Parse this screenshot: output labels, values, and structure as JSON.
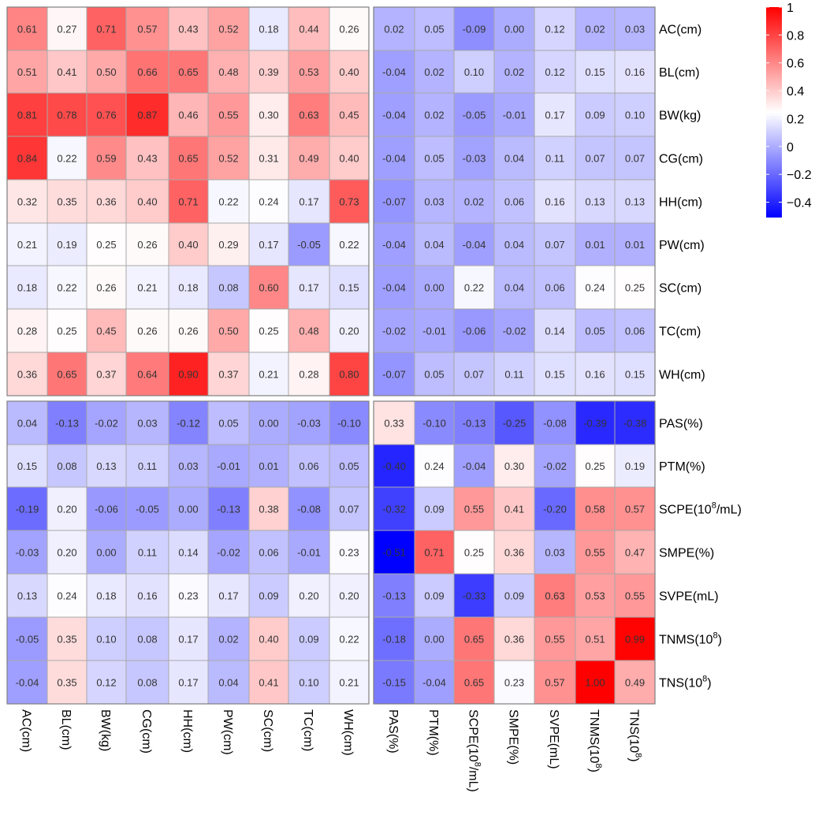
{
  "chart_data": {
    "type": "heatmap",
    "title": "",
    "xlabel": "",
    "ylabel": "",
    "rows": [
      "AC(cm)",
      "BL(cm)",
      "BW(kg)",
      "CG(cm)",
      "HH(cm)",
      "PW(cm)",
      "SC(cm)",
      "TC(cm)",
      "WH(cm)",
      "PAS(%)",
      "PTM(%)",
      "SCPE(10^8/mL)",
      "SMPE(%)",
      "SVPE(mL)",
      "TNMS(10^8)",
      "TNS(10^8)"
    ],
    "columns": [
      "AC(cm)",
      "BL(cm)",
      "BW(kg)",
      "CG(cm)",
      "HH(cm)",
      "PW(cm)",
      "SC(cm)",
      "TC(cm)",
      "WH(cm)",
      "PAS(%)",
      "PTM(%)",
      "SCPE(10^8/mL)",
      "SMPE(%)",
      "SVPE(mL)",
      "TNMS(10^8)",
      "TNS(10^8)"
    ],
    "values": [
      [
        0.61,
        0.27,
        0.71,
        0.57,
        0.43,
        0.52,
        0.18,
        0.44,
        0.26,
        0.02,
        0.05,
        -0.09,
        0.0,
        0.12,
        0.02,
        0.03
      ],
      [
        0.51,
        0.41,
        0.5,
        0.66,
        0.65,
        0.48,
        0.39,
        0.53,
        0.4,
        -0.04,
        0.02,
        0.1,
        0.02,
        0.12,
        0.15,
        0.16
      ],
      [
        0.81,
        0.78,
        0.76,
        0.87,
        0.46,
        0.55,
        0.3,
        0.63,
        0.45,
        -0.04,
        0.02,
        -0.05,
        -0.01,
        0.17,
        0.09,
        0.1
      ],
      [
        0.84,
        0.22,
        0.59,
        0.43,
        0.65,
        0.52,
        0.31,
        0.49,
        0.4,
        -0.04,
        0.05,
        -0.03,
        0.04,
        0.11,
        0.07,
        0.07
      ],
      [
        0.32,
        0.35,
        0.36,
        0.4,
        0.71,
        0.22,
        0.24,
        0.17,
        0.73,
        -0.07,
        0.03,
        0.02,
        0.06,
        0.16,
        0.13,
        0.13
      ],
      [
        0.21,
        0.19,
        0.25,
        0.26,
        0.4,
        0.29,
        0.17,
        -0.05,
        0.22,
        -0.04,
        0.04,
        -0.04,
        0.04,
        0.07,
        0.01,
        0.01
      ],
      [
        0.18,
        0.22,
        0.26,
        0.21,
        0.18,
        0.08,
        0.6,
        0.17,
        0.15,
        -0.04,
        0.0,
        0.22,
        0.04,
        0.06,
        0.24,
        0.25
      ],
      [
        0.28,
        0.25,
        0.45,
        0.26,
        0.26,
        0.5,
        0.25,
        0.48,
        0.2,
        -0.02,
        -0.01,
        -0.06,
        -0.02,
        0.14,
        0.05,
        0.06
      ],
      [
        0.36,
        0.65,
        0.37,
        0.64,
        0.9,
        0.37,
        0.21,
        0.28,
        0.8,
        -0.07,
        0.05,
        0.07,
        0.11,
        0.15,
        0.16,
        0.15
      ],
      [
        0.04,
        -0.13,
        -0.02,
        0.03,
        -0.12,
        0.05,
        0.0,
        -0.03,
        -0.1,
        0.33,
        -0.1,
        -0.13,
        -0.25,
        -0.08,
        -0.39,
        -0.38
      ],
      [
        0.15,
        0.08,
        0.13,
        0.11,
        0.03,
        -0.01,
        0.01,
        0.06,
        0.05,
        -0.4,
        0.24,
        -0.04,
        0.3,
        -0.02,
        0.25,
        0.19
      ],
      [
        -0.19,
        0.2,
        -0.06,
        -0.05,
        0.0,
        -0.13,
        0.38,
        -0.08,
        0.07,
        -0.32,
        0.09,
        0.55,
        0.41,
        -0.2,
        0.58,
        0.57
      ],
      [
        -0.03,
        0.2,
        0.0,
        0.11,
        0.14,
        -0.02,
        0.06,
        -0.01,
        0.23,
        -0.51,
        0.71,
        0.25,
        0.36,
        0.03,
        0.55,
        0.47
      ],
      [
        0.13,
        0.24,
        0.18,
        0.16,
        0.23,
        0.17,
        0.09,
        0.2,
        0.2,
        -0.13,
        0.09,
        -0.33,
        0.09,
        0.63,
        0.53,
        0.55
      ],
      [
        -0.05,
        0.35,
        0.1,
        0.08,
        0.17,
        0.02,
        0.4,
        0.09,
        0.22,
        -0.18,
        0.0,
        0.65,
        0.36,
        0.55,
        0.51,
        0.99
      ],
      [
        -0.04,
        0.35,
        0.12,
        0.08,
        0.17,
        0.04,
        0.41,
        0.1,
        0.21,
        -0.15,
        -0.04,
        0.65,
        0.23,
        0.57,
        1.0,
        0.49
      ]
    ],
    "value_labels": [
      [
        "0.61",
        "0.27",
        "0.71",
        "0.57",
        "0.43",
        "0.52",
        "0.18",
        "0.44",
        "0.26",
        "0.02",
        "0.05",
        "-0.09",
        "0.00",
        "0.12",
        "0.02",
        "0.03"
      ],
      [
        "0.51",
        "0.41",
        "0.50",
        "0.66",
        "0.65",
        "0.48",
        "0.39",
        "0.53",
        "0.40",
        "-0.04",
        "0.02",
        "0.10",
        "0.02",
        "0.12",
        "0.15",
        "0.16"
      ],
      [
        "0.81",
        "0.78",
        "0.76",
        "0.87",
        "0.46",
        "0.55",
        "0.30",
        "0.63",
        "0.45",
        "-0.04",
        "0.02",
        "-0.05",
        "-0.01",
        "0.17",
        "0.09",
        "0.10"
      ],
      [
        "0.84",
        "0.22",
        "0.59",
        "0.43",
        "0.65",
        "0.52",
        "0.31",
        "0.49",
        "0.40",
        "-0.04",
        "0.05",
        "-0.03",
        "0.04",
        "0.11",
        "0.07",
        "0.07"
      ],
      [
        "0.32",
        "0.35",
        "0.36",
        "0.40",
        "0.71",
        "0.22",
        "0.24",
        "0.17",
        "0.73",
        "-0.07",
        "0.03",
        "0.02",
        "0.06",
        "0.16",
        "0.13",
        "0.13"
      ],
      [
        "0.21",
        "0.19",
        "0.25",
        "0.26",
        "0.40",
        "0.29",
        "0.17",
        "-0.05",
        "0.22",
        "-0.04",
        "0.04",
        "-0.04",
        "0.04",
        "0.07",
        "0.01",
        "0.01"
      ],
      [
        "0.18",
        "0.22",
        "0.26",
        "0.21",
        "0.18",
        "0.08",
        "0.60",
        "0.17",
        "0.15",
        "-0.04",
        "0.00",
        "0.22",
        "0.04",
        "0.06",
        "0.24",
        "0.25"
      ],
      [
        "0.28",
        "0.25",
        "0.45",
        "0.26",
        "0.26",
        "0.50",
        "0.25",
        "0.48",
        "0.20",
        "-0.02",
        "-0.01",
        "-0.06",
        "-0.02",
        "0.14",
        "0.05",
        "0.06"
      ],
      [
        "0.36",
        "0.65",
        "0.37",
        "0.64",
        "0.90",
        "0.37",
        "0.21",
        "0.28",
        "0.80",
        "-0.07",
        "0.05",
        "0.07",
        "0.11",
        "0.15",
        "0.16",
        "0.15"
      ],
      [
        "0.04",
        "-0.13",
        "-0.02",
        "0.03",
        "-0.12",
        "0.05",
        "0.00",
        "-0.03",
        "-0.10",
        "0.33",
        "-0.10",
        "-0.13",
        "-0.25",
        "-0.08",
        "-0.39",
        "-0.38"
      ],
      [
        "0.15",
        "0.08",
        "0.13",
        "0.11",
        "0.03",
        "-0.01",
        "0.01",
        "0.06",
        "0.05",
        "-0.40",
        "0.24",
        "-0.04",
        "0.30",
        "-0.02",
        "0.25",
        "0.19"
      ],
      [
        "-0.19",
        "0.20",
        "-0.06",
        "-0.05",
        "0.00",
        "-0.13",
        "0.38",
        "-0.08",
        "0.07",
        "-0.32",
        "0.09",
        "0.55",
        "0.41",
        "-0.20",
        "0.58",
        "0.57"
      ],
      [
        "-0.03",
        "0.20",
        "0.00",
        "0.11",
        "0.14",
        "-0.02",
        "0.06",
        "-0.01",
        "0.23",
        "-0.51",
        "0.71",
        "0.25",
        "0.36",
        "0.03",
        "0.55",
        "0.47"
      ],
      [
        "0.13",
        "0.24",
        "0.18",
        "0.16",
        "0.23",
        "0.17",
        "0.09",
        "0.20",
        "0.20",
        "-0.13",
        "0.09",
        "-0.33",
        "0.09",
        "0.63",
        "0.53",
        "0.55"
      ],
      [
        "-0.05",
        "0.35",
        "0.10",
        "0.08",
        "0.17",
        "0.02",
        "0.40",
        "0.09",
        "0.22",
        "-0.18",
        "0.00",
        "0.65",
        "0.36",
        "0.55",
        "0.51",
        "0.99"
      ],
      [
        "-0.04",
        "0.35",
        "0.12",
        "0.08",
        "0.17",
        "0.04",
        "0.41",
        "0.10",
        "0.21",
        "-0.15",
        "-0.04",
        "0.65",
        "0.23",
        "0.57",
        "1.00",
        "0.49"
      ]
    ],
    "groups": [
      {
        "members": [
          "AC(cm)",
          "BL(cm)",
          "BW(kg)",
          "CG(cm)",
          "HH(cm)",
          "PW(cm)",
          "SC(cm)",
          "TC(cm)",
          "WH(cm)"
        ]
      },
      {
        "members": [
          "PAS(%)",
          "PTM(%)",
          "SCPE(10^8/mL)",
          "SMPE(%)",
          "SVPE(mL)",
          "TNMS(10^8)",
          "TNS(10^8)"
        ]
      }
    ],
    "color_scale": {
      "min": -0.51,
      "max": 1,
      "colors": {
        "low": "#0000ff",
        "mid": "#ffffff",
        "high": "#ff0000"
      },
      "mid_value": 0.245,
      "ticks": [
        1,
        0.8,
        0.6,
        0.4,
        0.2,
        0,
        -0.2,
        -0.4
      ],
      "tick_labels": [
        "1",
        "0.8",
        "0.6",
        "0.4",
        "0.2",
        "0",
        "−0.2",
        "−0.4"
      ]
    },
    "legend": "right",
    "grid": true
  }
}
